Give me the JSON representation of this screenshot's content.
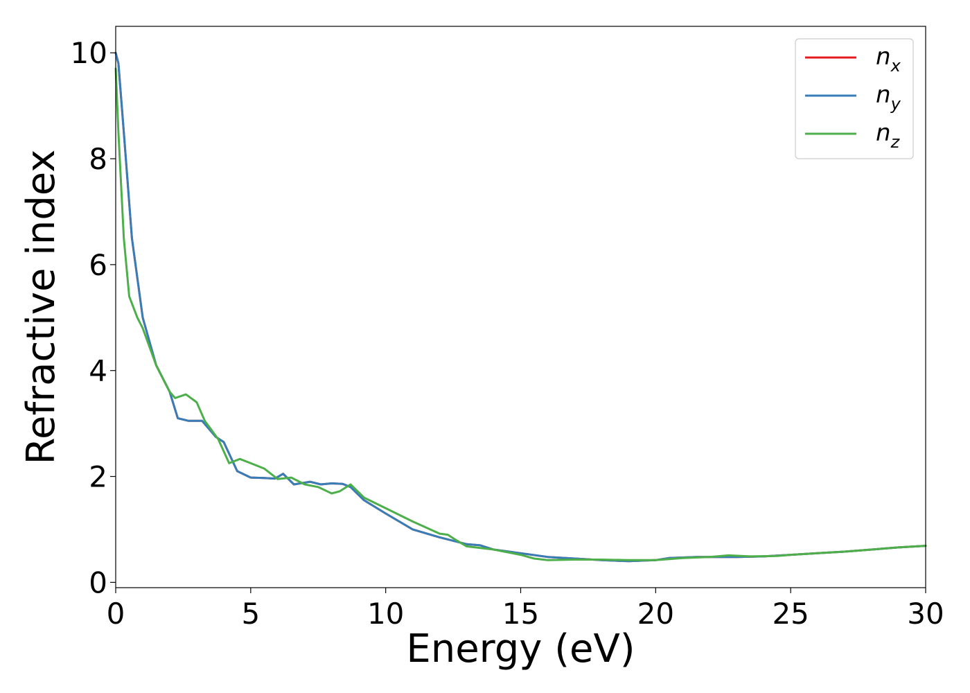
{
  "chart_data": {
    "type": "line",
    "xlabel": "Energy (eV)",
    "ylabel": "Refractive index",
    "xlim": [
      0,
      30
    ],
    "ylim": [
      -0.1,
      10.5
    ],
    "xticks": [
      0,
      5,
      10,
      15,
      20,
      25,
      30
    ],
    "yticks": [
      0,
      2,
      4,
      6,
      8,
      10
    ],
    "grid": false,
    "legend_position": "top-right",
    "series": [
      {
        "name": "n_x",
        "label_base": "n",
        "label_sub": "x",
        "color": "#e41a1c",
        "x": [
          0.0,
          0.1,
          0.3,
          0.6,
          1.0,
          1.5,
          2.0,
          2.3,
          2.7,
          3.2,
          3.7,
          4.0,
          4.5,
          5.0,
          5.5,
          5.9,
          6.2,
          6.6,
          7.2,
          7.6,
          8.0,
          8.4,
          8.7,
          9.2,
          10.0,
          11.0,
          12.0,
          13.0,
          13.5,
          14.0,
          15.0,
          16.0,
          17.0,
          18.0,
          19.0,
          20.0,
          20.5,
          21.5,
          23.0,
          24.0,
          25.0,
          26.0,
          27.0,
          28.0,
          29.0,
          30.0
        ],
        "y": [
          10.0,
          9.8,
          8.5,
          6.5,
          5.0,
          4.1,
          3.6,
          3.1,
          3.05,
          3.05,
          2.75,
          2.65,
          2.1,
          1.98,
          1.97,
          1.96,
          2.05,
          1.85,
          1.9,
          1.85,
          1.87,
          1.86,
          1.8,
          1.55,
          1.3,
          1.0,
          0.85,
          0.72,
          0.7,
          0.62,
          0.55,
          0.48,
          0.45,
          0.42,
          0.4,
          0.42,
          0.46,
          0.48,
          0.48,
          0.49,
          0.52,
          0.55,
          0.58,
          0.62,
          0.66,
          0.69
        ]
      },
      {
        "name": "n_y",
        "label_base": "n",
        "label_sub": "y",
        "color": "#377eb8",
        "x": [
          0.0,
          0.1,
          0.3,
          0.6,
          1.0,
          1.5,
          2.0,
          2.3,
          2.7,
          3.2,
          3.7,
          4.0,
          4.5,
          5.0,
          5.5,
          5.9,
          6.2,
          6.6,
          7.2,
          7.6,
          8.0,
          8.4,
          8.7,
          9.2,
          10.0,
          11.0,
          12.0,
          13.0,
          13.5,
          14.0,
          15.0,
          16.0,
          17.0,
          18.0,
          19.0,
          20.0,
          20.5,
          21.5,
          23.0,
          24.0,
          25.0,
          26.0,
          27.0,
          28.0,
          29.0,
          30.0
        ],
        "y": [
          10.0,
          9.8,
          8.5,
          6.5,
          5.0,
          4.1,
          3.6,
          3.1,
          3.05,
          3.05,
          2.75,
          2.65,
          2.1,
          1.98,
          1.97,
          1.96,
          2.05,
          1.85,
          1.9,
          1.85,
          1.87,
          1.86,
          1.8,
          1.55,
          1.3,
          1.0,
          0.85,
          0.72,
          0.7,
          0.62,
          0.55,
          0.48,
          0.45,
          0.42,
          0.4,
          0.42,
          0.46,
          0.48,
          0.48,
          0.49,
          0.52,
          0.55,
          0.58,
          0.62,
          0.66,
          0.69
        ]
      },
      {
        "name": "n_z",
        "label_base": "n",
        "label_sub": "z",
        "color": "#4daf4a",
        "x": [
          0.0,
          0.1,
          0.3,
          0.5,
          0.8,
          1.0,
          1.5,
          2.0,
          2.2,
          2.6,
          3.0,
          3.3,
          3.8,
          4.2,
          4.6,
          5.0,
          5.5,
          6.0,
          6.5,
          7.0,
          7.5,
          8.0,
          8.3,
          8.7,
          9.2,
          10.0,
          11.0,
          12.0,
          12.3,
          12.6,
          13.0,
          14.0,
          15.0,
          15.5,
          16.0,
          17.0,
          18.0,
          19.0,
          20.0,
          21.0,
          22.0,
          22.7,
          23.5,
          24.5,
          25.0,
          26.0,
          27.0,
          28.0,
          29.0,
          30.0
        ],
        "y": [
          9.7,
          8.5,
          6.5,
          5.4,
          5.0,
          4.8,
          4.1,
          3.6,
          3.48,
          3.55,
          3.4,
          3.05,
          2.7,
          2.25,
          2.33,
          2.25,
          2.15,
          1.95,
          1.98,
          1.85,
          1.8,
          1.68,
          1.72,
          1.85,
          1.6,
          1.4,
          1.15,
          0.92,
          0.9,
          0.8,
          0.68,
          0.62,
          0.52,
          0.45,
          0.42,
          0.43,
          0.43,
          0.42,
          0.42,
          0.46,
          0.48,
          0.51,
          0.49,
          0.5,
          0.52,
          0.55,
          0.58,
          0.62,
          0.66,
          0.69
        ]
      }
    ]
  }
}
